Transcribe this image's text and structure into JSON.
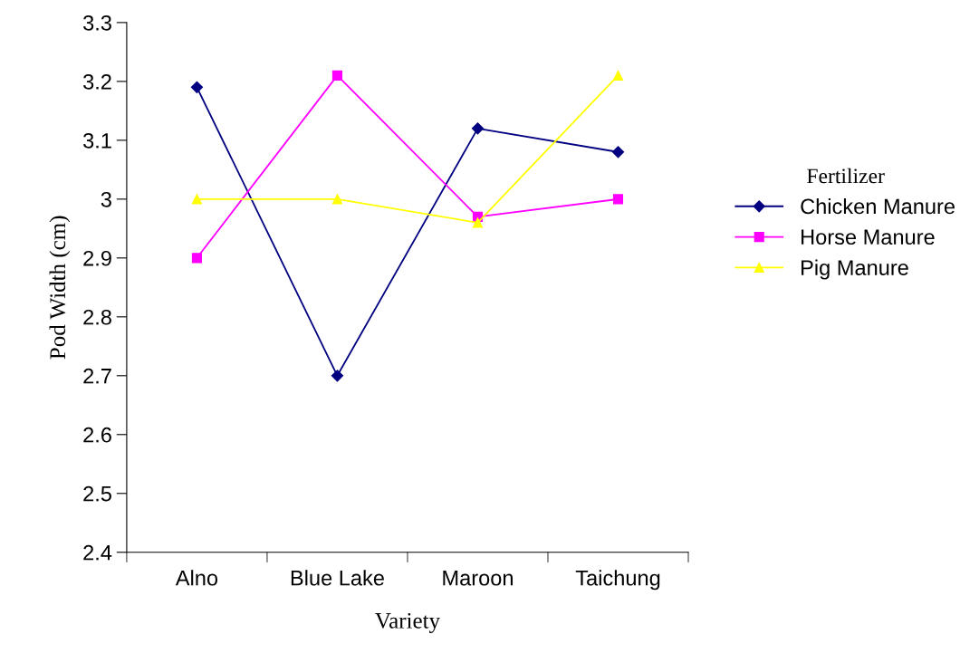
{
  "chart_data": {
    "type": "line",
    "xlabel": "Variety",
    "ylabel": "Pod Width (cm)",
    "legend_title": "Fertilizer",
    "categories": [
      "Alno",
      "Blue Lake",
      "Maroon",
      "Taichung"
    ],
    "series": [
      {
        "name": "Chicken Manure",
        "color": "#000080",
        "marker": "diamond",
        "values": [
          3.19,
          2.7,
          3.12,
          3.08
        ]
      },
      {
        "name": "Horse Manure",
        "color": "#ff00ff",
        "marker": "square",
        "values": [
          2.9,
          3.21,
          2.97,
          3.0
        ]
      },
      {
        "name": "Pig Manure",
        "color": "#ffff00",
        "marker": "triangle",
        "values": [
          3.0,
          3.0,
          2.96,
          3.21
        ]
      }
    ],
    "ylim": [
      2.4,
      3.3
    ],
    "yticks": [
      2.4,
      2.5,
      2.6,
      2.7,
      2.8,
      2.9,
      {
        "value": 3.0,
        "label": "3"
      },
      3.1,
      3.2,
      3.3
    ],
    "grid": false,
    "legend": "right",
    "line_style": "solid"
  }
}
